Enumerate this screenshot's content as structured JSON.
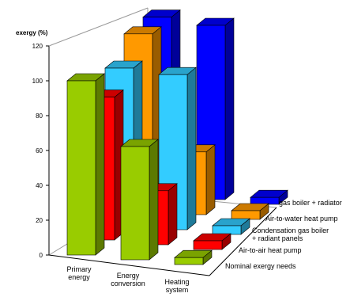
{
  "chart_data": {
    "type": "bar3d",
    "y_label": "exergy (%)",
    "categories": [
      "Primary\nenergy",
      "Energy\nconversion",
      "Heating\nsystem"
    ],
    "series": [
      {
        "name": "Nominal exergy needs",
        "color": "#99cc00",
        "values": [
          100,
          65,
          4
        ]
      },
      {
        "name": "Air-to-air heat pump",
        "color": "#ff0000",
        "values": [
          82,
          31,
          5
        ]
      },
      {
        "name": "Condensation gas boiler\n+ radiant panels",
        "color": "#33ccff",
        "values": [
          90,
          89,
          5
        ]
      },
      {
        "name": "Air-to-water heat pump",
        "color": "#ff9900",
        "values": [
          101,
          36,
          5
        ]
      },
      {
        "name": "gas boiler + radiator",
        "color": "#0000ff",
        "values": [
          102,
          100,
          4
        ]
      }
    ],
    "ylim": [
      0,
      120
    ],
    "yticks": [
      0,
      20,
      40,
      60,
      80,
      100,
      120
    ]
  }
}
